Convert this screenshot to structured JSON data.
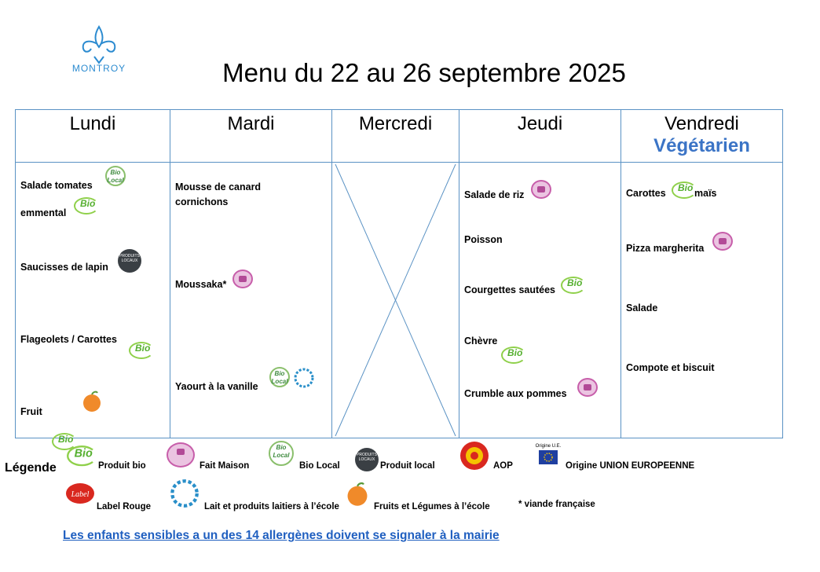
{
  "logo": {
    "name": "MONTROY"
  },
  "title": "Menu du 22 au 26 septembre 2025",
  "days": [
    {
      "label": "Lundi"
    },
    {
      "label": "Mardi"
    },
    {
      "label": "Mercredi"
    },
    {
      "label": "Jeudi"
    },
    {
      "label": "Vendredi",
      "sublabel": "Végétarien"
    }
  ],
  "lundi": {
    "items": [
      "Salade tomates",
      "emmental",
      "Saucisses de lapin",
      "Flageolets / Carottes",
      "Fruit"
    ]
  },
  "mardi": {
    "items": [
      "Mousse de canard",
      "cornichons",
      "Moussaka*",
      "Yaourt à la vanille"
    ]
  },
  "jeudi": {
    "items": [
      "Salade de riz",
      "Poisson",
      "Courgettes sautées",
      "Chèvre",
      "Crumble aux pommes"
    ]
  },
  "vendredi": {
    "items": [
      "Carottes",
      "maïs",
      "Pizza margherita",
      "Salade",
      "Compote et biscuit"
    ]
  },
  "legend": {
    "label": "Légende",
    "entries": [
      {
        "icon": "bio-icon",
        "text": "Produit bio"
      },
      {
        "icon": "fait-maison-icon",
        "text": "Fait Maison"
      },
      {
        "icon": "bio-local-icon",
        "text": "Bio Local"
      },
      {
        "icon": "produit-local-icon",
        "text": "Produit local"
      },
      {
        "icon": "aop-icon",
        "text": "AOP"
      },
      {
        "icon": "origine-ue-icon",
        "text": "Origine UNION EUROPEENNE"
      },
      {
        "icon": "label-rouge-icon",
        "text": "Label Rouge"
      },
      {
        "icon": "lait-ecole-icon",
        "text": "Lait et produits laitiers à l’école"
      },
      {
        "icon": "fruits-legumes-ecole-icon",
        "text": "Fruits et Légumes à l’école"
      },
      {
        "icon": "asterisk",
        "text": "* viande française"
      }
    ],
    "origine_ue_caption": "Origine U.E."
  },
  "notice": "Les enfants sensibles a un des 14 allergènes doivent se signaler à la mairie",
  "colors": {
    "border": "#5a92c4",
    "vegetarien": "#3b74c6",
    "notice": "#1f5fc0",
    "bio_green": "#8fd04a"
  }
}
